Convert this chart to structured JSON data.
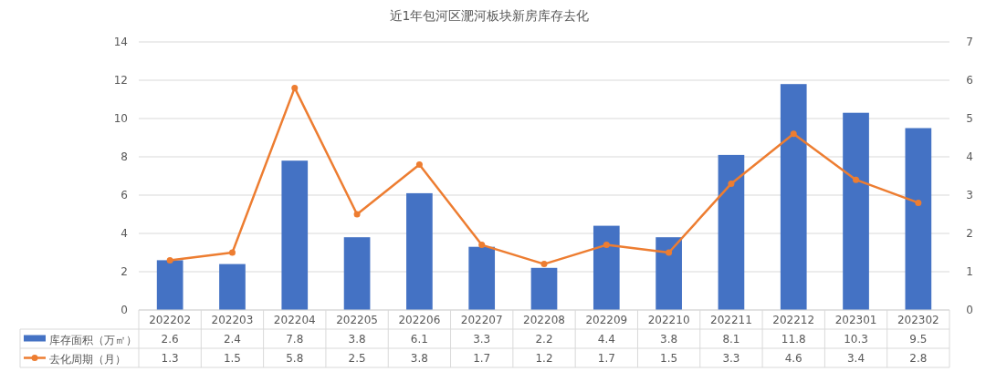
{
  "chart_data": {
    "type": "bar",
    "title": "近1年包河区淝河板块新房库存去化",
    "categories": [
      "202202",
      "202203",
      "202204",
      "202205",
      "202206",
      "202207",
      "202208",
      "202209",
      "202210",
      "202211",
      "202212",
      "202301",
      "202302"
    ],
    "series": [
      {
        "name": "库存面积（万㎡）",
        "color": "#4472c4",
        "values": [
          2.6,
          2.4,
          7.8,
          3.8,
          6.1,
          3.3,
          2.2,
          4.4,
          3.8,
          8.1,
          11.8,
          10.3,
          9.5
        ]
      },
      {
        "name": "去化周期（月）",
        "type": "line",
        "axis": "y2",
        "color": "#ed7d31",
        "marker": "circle",
        "values": [
          1.3,
          1.5,
          5.8,
          2.5,
          3.8,
          1.7,
          1.2,
          1.7,
          1.5,
          3.3,
          4.6,
          3.4,
          2.8
        ]
      }
    ],
    "ylim": [
      0,
      14
    ],
    "yticks": [
      0,
      2,
      4,
      6,
      8,
      10,
      12,
      14
    ],
    "y2lim": [
      0,
      7
    ],
    "y2ticks": [
      0,
      1,
      2,
      3,
      4,
      5,
      6,
      7
    ],
    "grid": "y",
    "data_labels": true,
    "legend": "bottom"
  }
}
